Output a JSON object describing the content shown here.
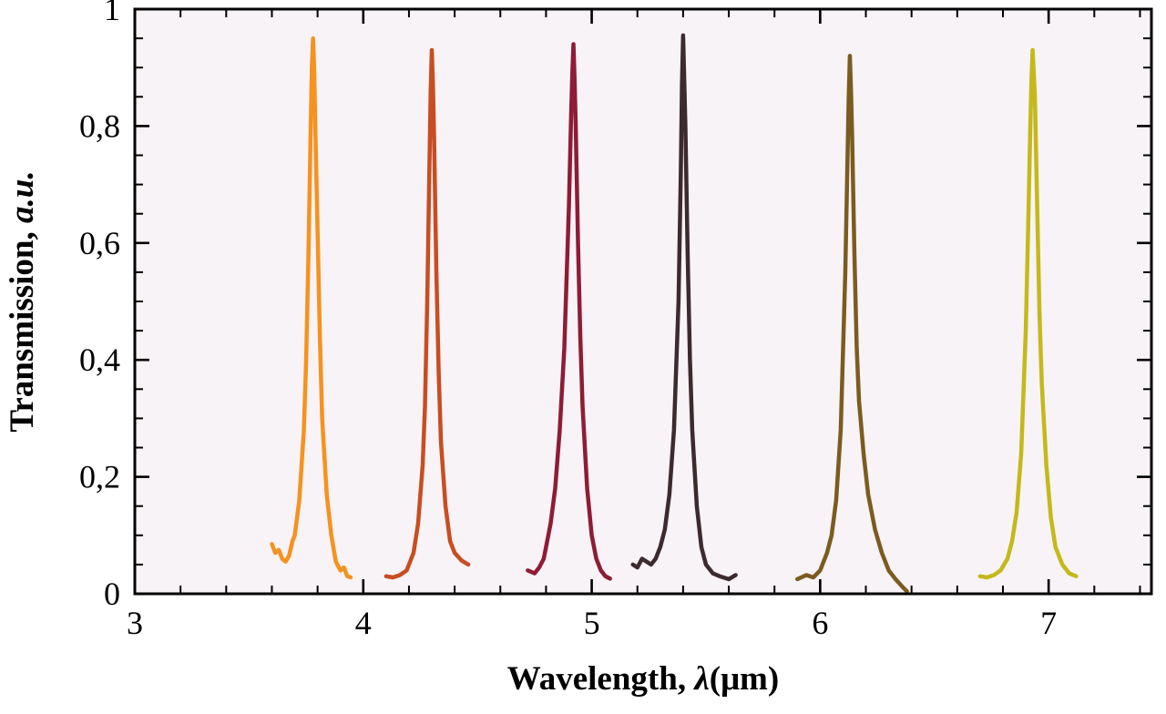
{
  "figure": {
    "background": "#ffffff"
  },
  "chart_data": {
    "type": "line",
    "title": "",
    "xlabel": "Wavelength, λ(μm)",
    "ylabel": "Transmission, a.u.",
    "xlabel_parts": {
      "main": "Wavelength, ",
      "symbol": "λ",
      "unit": "(μm)"
    },
    "ylabel_parts": {
      "main": "Transmission, ",
      "unit": "a.u."
    },
    "x_range": [
      3,
      7.45
    ],
    "y_range": [
      0,
      1
    ],
    "x_major_ticks": [
      {
        "v": 3,
        "label": "3"
      },
      {
        "v": 4,
        "label": "4"
      },
      {
        "v": 5,
        "label": "5"
      },
      {
        "v": 6,
        "label": "6"
      },
      {
        "v": 7,
        "label": "7"
      }
    ],
    "x_minor_step": 0.2,
    "y_major_ticks": [
      {
        "v": 0,
        "label": "0"
      },
      {
        "v": 0.2,
        "label": "0,2"
      },
      {
        "v": 0.4,
        "label": "0,4"
      },
      {
        "v": 0.6,
        "label": "0,6"
      },
      {
        "v": 0.8,
        "label": "0,8"
      },
      {
        "v": 1,
        "label": "1"
      }
    ],
    "y_minor_step": 0.05,
    "grid": false,
    "legend": "none",
    "plot_bg": "#f8f3f7",
    "frame_color": "#000000",
    "series": [
      {
        "name": "peak-3.78um",
        "peak_wavelength": 3.78,
        "peak_height": 0.95,
        "color": "#F6921E",
        "points": [
          [
            3.6,
            0.085
          ],
          [
            3.615,
            0.07
          ],
          [
            3.63,
            0.075
          ],
          [
            3.645,
            0.06
          ],
          [
            3.66,
            0.055
          ],
          [
            3.675,
            0.065
          ],
          [
            3.69,
            0.09
          ],
          [
            3.7,
            0.1
          ],
          [
            3.72,
            0.16
          ],
          [
            3.74,
            0.28
          ],
          [
            3.75,
            0.4
          ],
          [
            3.76,
            0.58
          ],
          [
            3.77,
            0.8
          ],
          [
            3.775,
            0.9
          ],
          [
            3.78,
            0.95
          ],
          [
            3.785,
            0.9
          ],
          [
            3.79,
            0.8
          ],
          [
            3.8,
            0.62
          ],
          [
            3.81,
            0.44
          ],
          [
            3.82,
            0.3
          ],
          [
            3.84,
            0.17
          ],
          [
            3.86,
            0.1
          ],
          [
            3.88,
            0.055
          ],
          [
            3.9,
            0.04
          ],
          [
            3.915,
            0.045
          ],
          [
            3.93,
            0.03
          ],
          [
            3.945,
            0.028
          ]
        ]
      },
      {
        "name": "peak-4.30um",
        "peak_wavelength": 4.3,
        "peak_height": 0.93,
        "color": "#C84D21",
        "points": [
          [
            4.1,
            0.03
          ],
          [
            4.13,
            0.028
          ],
          [
            4.16,
            0.032
          ],
          [
            4.19,
            0.04
          ],
          [
            4.22,
            0.07
          ],
          [
            4.24,
            0.12
          ],
          [
            4.26,
            0.22
          ],
          [
            4.27,
            0.32
          ],
          [
            4.28,
            0.5
          ],
          [
            4.29,
            0.74
          ],
          [
            4.295,
            0.86
          ],
          [
            4.3,
            0.93
          ],
          [
            4.305,
            0.87
          ],
          [
            4.31,
            0.78
          ],
          [
            4.32,
            0.55
          ],
          [
            4.33,
            0.38
          ],
          [
            4.34,
            0.26
          ],
          [
            4.36,
            0.15
          ],
          [
            4.38,
            0.09
          ],
          [
            4.4,
            0.07
          ],
          [
            4.43,
            0.057
          ],
          [
            4.46,
            0.05
          ]
        ]
      },
      {
        "name": "peak-4.92um",
        "peak_wavelength": 4.92,
        "peak_height": 0.94,
        "color": "#8E1C35",
        "points": [
          [
            4.72,
            0.04
          ],
          [
            4.75,
            0.035
          ],
          [
            4.77,
            0.045
          ],
          [
            4.79,
            0.06
          ],
          [
            4.8,
            0.08
          ],
          [
            4.82,
            0.12
          ],
          [
            4.84,
            0.18
          ],
          [
            4.86,
            0.28
          ],
          [
            4.88,
            0.42
          ],
          [
            4.9,
            0.66
          ],
          [
            4.91,
            0.82
          ],
          [
            4.915,
            0.89
          ],
          [
            4.92,
            0.94
          ],
          [
            4.925,
            0.88
          ],
          [
            4.93,
            0.8
          ],
          [
            4.94,
            0.6
          ],
          [
            4.95,
            0.44
          ],
          [
            4.96,
            0.32
          ],
          [
            4.98,
            0.18
          ],
          [
            5.0,
            0.1
          ],
          [
            5.02,
            0.06
          ],
          [
            5.04,
            0.04
          ],
          [
            5.06,
            0.03
          ],
          [
            5.08,
            0.026
          ]
        ]
      },
      {
        "name": "peak-5.40um",
        "peak_wavelength": 5.4,
        "peak_height": 0.955,
        "color": "#3B2A2E",
        "points": [
          [
            5.18,
            0.05
          ],
          [
            5.2,
            0.045
          ],
          [
            5.22,
            0.06
          ],
          [
            5.24,
            0.055
          ],
          [
            5.26,
            0.05
          ],
          [
            5.28,
            0.06
          ],
          [
            5.3,
            0.08
          ],
          [
            5.32,
            0.11
          ],
          [
            5.34,
            0.17
          ],
          [
            5.36,
            0.28
          ],
          [
            5.38,
            0.5
          ],
          [
            5.39,
            0.72
          ],
          [
            5.395,
            0.87
          ],
          [
            5.4,
            0.955
          ],
          [
            5.405,
            0.88
          ],
          [
            5.41,
            0.8
          ],
          [
            5.42,
            0.58
          ],
          [
            5.43,
            0.4
          ],
          [
            5.44,
            0.28
          ],
          [
            5.46,
            0.15
          ],
          [
            5.48,
            0.08
          ],
          [
            5.5,
            0.05
          ],
          [
            5.53,
            0.035
          ],
          [
            5.56,
            0.03
          ],
          [
            5.6,
            0.025
          ],
          [
            5.63,
            0.032
          ]
        ]
      },
      {
        "name": "peak-6.13um",
        "peak_wavelength": 6.13,
        "peak_height": 0.92,
        "color": "#7B5B1F",
        "points": [
          [
            5.9,
            0.025
          ],
          [
            5.94,
            0.032
          ],
          [
            5.97,
            0.028
          ],
          [
            6.0,
            0.04
          ],
          [
            6.03,
            0.07
          ],
          [
            6.05,
            0.1
          ],
          [
            6.07,
            0.16
          ],
          [
            6.09,
            0.28
          ],
          [
            6.11,
            0.55
          ],
          [
            6.12,
            0.75
          ],
          [
            6.125,
            0.85
          ],
          [
            6.13,
            0.92
          ],
          [
            6.135,
            0.86
          ],
          [
            6.14,
            0.78
          ],
          [
            6.15,
            0.58
          ],
          [
            6.16,
            0.42
          ],
          [
            6.17,
            0.33
          ],
          [
            6.19,
            0.24
          ],
          [
            6.21,
            0.17
          ],
          [
            6.24,
            0.11
          ],
          [
            6.27,
            0.07
          ],
          [
            6.3,
            0.04
          ],
          [
            6.33,
            0.025
          ],
          [
            6.36,
            0.012
          ],
          [
            6.38,
            0.004
          ]
        ]
      },
      {
        "name": "peak-6.93um",
        "peak_wavelength": 6.93,
        "peak_height": 0.93,
        "color": "#C5B81B",
        "points": [
          [
            6.7,
            0.03
          ],
          [
            6.73,
            0.028
          ],
          [
            6.76,
            0.032
          ],
          [
            6.79,
            0.04
          ],
          [
            6.82,
            0.06
          ],
          [
            6.84,
            0.09
          ],
          [
            6.86,
            0.14
          ],
          [
            6.88,
            0.24
          ],
          [
            6.9,
            0.45
          ],
          [
            6.91,
            0.62
          ],
          [
            6.92,
            0.8
          ],
          [
            6.925,
            0.88
          ],
          [
            6.93,
            0.93
          ],
          [
            6.935,
            0.89
          ],
          [
            6.94,
            0.85
          ],
          [
            6.95,
            0.66
          ],
          [
            6.96,
            0.48
          ],
          [
            6.97,
            0.36
          ],
          [
            6.99,
            0.22
          ],
          [
            7.01,
            0.13
          ],
          [
            7.03,
            0.08
          ],
          [
            7.06,
            0.05
          ],
          [
            7.09,
            0.035
          ],
          [
            7.12,
            0.03
          ]
        ]
      }
    ]
  }
}
